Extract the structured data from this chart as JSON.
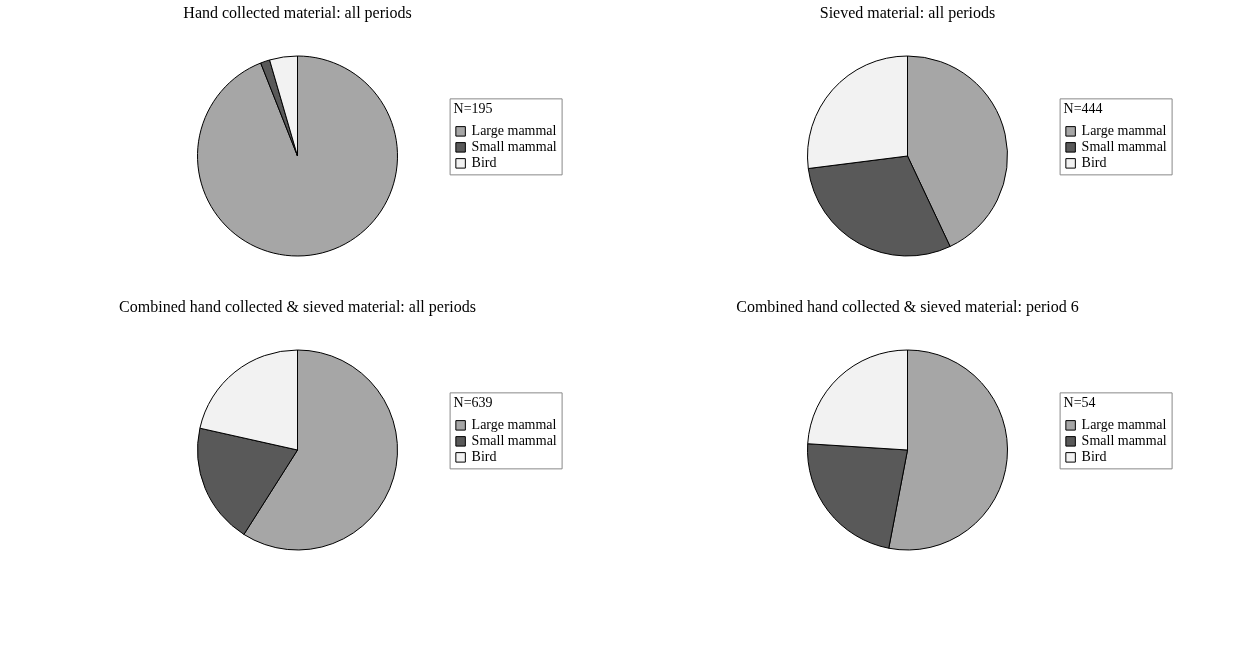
{
  "chart_data": [
    {
      "type": "pie",
      "title": "Hand collected material: all periods",
      "legend_title": "N=195",
      "legend": "right",
      "categories": [
        "Large mammal",
        "Small mammal",
        "Bird"
      ],
      "values": [
        94,
        1.5,
        4.5
      ],
      "colors": [
        "#a6a6a6",
        "#595959",
        "#f2f2f2"
      ]
    },
    {
      "type": "pie",
      "title": "Sieved material: all periods",
      "legend_title": "N=444",
      "legend": "right",
      "categories": [
        "Large mammal",
        "Small mammal",
        "Bird"
      ],
      "values": [
        43,
        30,
        27
      ],
      "colors": [
        "#a6a6a6",
        "#595959",
        "#f2f2f2"
      ]
    },
    {
      "type": "pie",
      "title": "Combined hand collected & sieved material: all periods",
      "legend_title": "N=639",
      "legend": "right",
      "categories": [
        "Large mammal",
        "Small mammal",
        "Bird"
      ],
      "values": [
        59,
        19.5,
        21.5
      ],
      "colors": [
        "#a6a6a6",
        "#595959",
        "#f2f2f2"
      ]
    },
    {
      "type": "pie",
      "title": "Combined hand collected & sieved material: period 6",
      "legend_title": "N=54",
      "legend": "right",
      "categories": [
        "Large mammal",
        "Small mammal",
        "Bird"
      ],
      "values": [
        53,
        23,
        24
      ],
      "colors": [
        "#a6a6a6",
        "#595959",
        "#f2f2f2"
      ]
    }
  ]
}
